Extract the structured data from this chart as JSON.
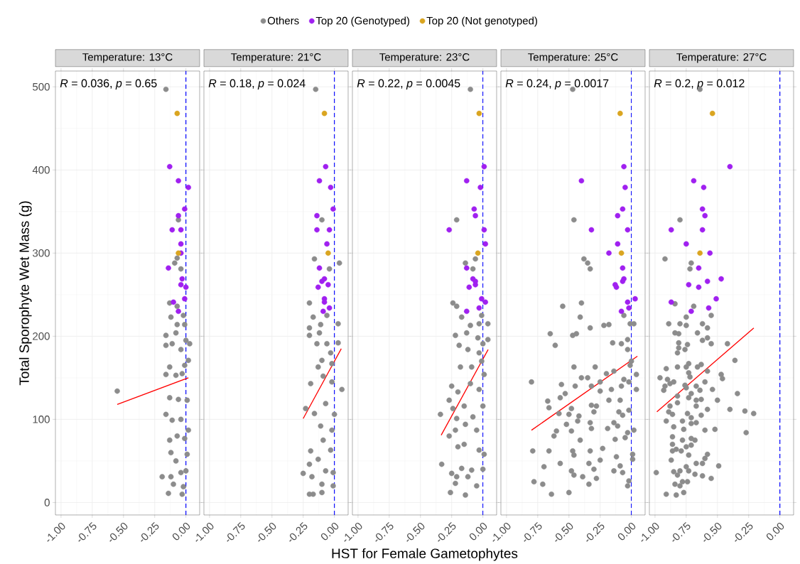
{
  "chart_data": [
    {
      "type": "scatter",
      "title": "Temperature: 13°C",
      "ylabel": "Total Sporophyte Wet Mass (g)",
      "annotations": [
        "*R* = 0.036, *p* = 0.65"
      ],
      "xlim": [
        -1.045,
        0.11
      ],
      "ylim": [
        -15,
        519
      ],
      "xticks": [
        {
          "value": -1,
          "label": "-1.00"
        },
        {
          "value": -0.75,
          "label": "-0.75"
        },
        {
          "value": -0.5,
          "label": "-0.50"
        },
        {
          "value": -0.25,
          "label": "-0.25"
        },
        {
          "value": 0,
          "label": "0.00"
        }
      ],
      "yticks": [
        0,
        100,
        200,
        300,
        400,
        500
      ],
      "grid": true,
      "marker": "circle",
      "legend": "top",
      "ref_lines": [
        {
          "axis": "x",
          "value": 0,
          "color": "#0000ff",
          "line_style": "dashed"
        }
      ],
      "series": [
        {
          "name": "Others",
          "color": "#8c8c8c",
          "x": [
            -0.16,
            -0.55,
            -0.06,
            -0.07,
            -0.09,
            -0.04,
            -0.13,
            -0.07,
            -0.12,
            -0.02,
            -0.07,
            -0.01,
            -0.16,
            -0.08,
            -0.16,
            -0.11,
            -0.04,
            0.03,
            0,
            0.02,
            -0.13,
            -0.01,
            -0.16,
            -0.08,
            -0.03,
            -0.13,
            -0.06,
            0.01,
            -0.16,
            -0.11,
            -0.04,
            0.02,
            -0.13,
            -0.07,
            -0.01,
            -0.12,
            0.01,
            -0.08,
            -0.19,
            -0.12,
            -0.04,
            0,
            -0.1,
            -0.02,
            -0.14,
            -0.03
          ],
          "values": [
            497,
            134,
            340,
            294,
            288,
            281,
            240,
            236,
            223,
            225,
            214,
            214,
            201,
            204,
            189,
            191,
            184,
            191,
            195,
            171,
            163,
            165,
            154,
            153,
            155,
            126,
            124,
            123,
            106,
            99,
            100,
            87,
            75,
            80,
            77,
            60,
            58,
            50,
            31,
            31,
            36,
            38,
            22,
            19,
            11,
            10
          ]
        },
        {
          "name": "Top 20 (Genotyped)",
          "color": "#a020f0",
          "x": [
            -0.13,
            -0.06,
            0.02,
            -0.01,
            -0.06,
            -0.11,
            -0.04,
            -0.04,
            -0.04,
            -0.14,
            -0.03,
            -0.04,
            0,
            -0.01,
            -0.1,
            -0.06
          ],
          "values": [
            404,
            387,
            379,
            353,
            345,
            328,
            328,
            311,
            300,
            282,
            269,
            262,
            259,
            245,
            241,
            230
          ]
        },
        {
          "name": "Top 20 (Not genotyped)",
          "color": "#daa520",
          "x": [
            -0.07,
            -0.06
          ],
          "values": [
            468,
            300
          ]
        },
        {
          "type": "line",
          "marker": "none",
          "color": "#ff0000",
          "x": [
            -0.55,
            0.02
          ],
          "values": [
            118,
            150
          ]
        }
      ]
    },
    {
      "type": "scatter",
      "title": "Temperature: 21°C",
      "annotations": [
        "*R* = 0.18, *p* = 0.024"
      ],
      "xlim": [
        -1.045,
        0.11
      ],
      "ylim": [
        -15,
        519
      ],
      "xticks": [
        {
          "value": -1,
          "label": "-1.00"
        },
        {
          "value": -0.75,
          "label": "-0.75"
        },
        {
          "value": -0.5,
          "label": "-0.50"
        },
        {
          "value": -0.25,
          "label": "-0.25"
        },
        {
          "value": 0,
          "label": "0.00"
        }
      ],
      "yticks": [
        0,
        100,
        200,
        300,
        400,
        500
      ],
      "tick_labels": "x",
      "grid": true,
      "marker": "circle",
      "ref_lines": [
        {
          "axis": "x",
          "value": 0,
          "color": "#0000ff",
          "line_style": "dashed"
        }
      ],
      "series": [
        {
          "color": "#8c8c8c",
          "x": [
            -0.15,
            -0.1,
            -0.16,
            -0.04,
            0.04,
            -0.2,
            -0.17,
            -0.06,
            -0.11,
            0.03,
            -0.2,
            -0.2,
            -0.12,
            -0.14,
            -0.06,
            0.03,
            -0.03,
            -0.1,
            -0.13,
            -0.02,
            -0.19,
            -0.09,
            0.06,
            -0.02,
            -0.23,
            -0.16,
            -0.07,
            0,
            -0.11,
            -0.02,
            -0.19,
            -0.09,
            -0.03,
            -0.2,
            -0.13,
            -0.25,
            -0.18,
            -0.07,
            -0.01,
            -0.1,
            -0.01,
            -0.2,
            -0.17,
            -0.1
          ],
          "values": [
            497,
            340,
            293,
            281,
            288,
            240,
            223,
            225,
            214,
            215,
            210,
            201,
            204,
            191,
            191,
            192,
            180,
            171,
            163,
            167,
            143,
            152,
            136,
            145,
            113,
            107,
            119,
            106,
            92,
            87,
            62,
            75,
            63,
            46,
            52,
            35,
            31,
            38,
            36,
            22,
            20,
            10,
            10,
            12
          ]
        },
        {
          "color": "#a020f0",
          "x": [
            -0.07,
            -0.12,
            -0.03,
            -0.01,
            -0.14,
            -0.14,
            -0.04,
            -0.06,
            -0.12,
            -0.08,
            -0.1,
            -0.05,
            -0.13,
            -0.08,
            -0.08,
            -0.04,
            -0.09
          ],
          "values": [
            404,
            387,
            379,
            353,
            345,
            328,
            328,
            311,
            282,
            269,
            266,
            262,
            259,
            245,
            241,
            234,
            230
          ]
        },
        {
          "color": "#daa520",
          "x": [
            -0.08,
            -0.05
          ],
          "values": [
            468,
            300
          ]
        },
        {
          "type": "line",
          "marker": "none",
          "color": "#ff0000",
          "x": [
            -0.25,
            0.055
          ],
          "values": [
            101,
            185
          ]
        }
      ]
    },
    {
      "type": "scatter",
      "title": "Temperature: 23°C",
      "xlabel": "HST for Female Gametophytes",
      "annotations": [
        "*R* = 0.22, *p* = 0.0045"
      ],
      "xlim": [
        -1.045,
        0.11
      ],
      "ylim": [
        -15,
        519
      ],
      "xticks": [
        {
          "value": -1,
          "label": "-1.00"
        },
        {
          "value": -0.75,
          "label": "-0.75"
        },
        {
          "value": -0.5,
          "label": "-0.50"
        },
        {
          "value": -0.25,
          "label": "-0.25"
        },
        {
          "value": 0,
          "label": "0.00"
        }
      ],
      "yticks": [
        0,
        100,
        200,
        300,
        400,
        500
      ],
      "tick_labels": "x",
      "grid": true,
      "marker": "circle",
      "ref_lines": [
        {
          "axis": "x",
          "value": 0,
          "color": "#0000ff",
          "line_style": "dashed"
        }
      ],
      "series": [
        {
          "color": "#8c8c8c",
          "x": [
            -0.1,
            -0.21,
            -0.06,
            -0.14,
            -0.08,
            -0.24,
            -0.21,
            -0.01,
            -0.17,
            -0.1,
            -0.03,
            0.04,
            -0.22,
            -0.13,
            -0.04,
            -0.19,
            -0.12,
            0,
            0.04,
            -0.03,
            -0.18,
            -0.09,
            -0.01,
            0.01,
            -0.25,
            -0.2,
            -0.1,
            -0.03,
            -0.27,
            -0.24,
            -0.15,
            0,
            -0.34,
            -0.21,
            -0.08,
            -0.27,
            -0.22,
            -0.14,
            -0.05,
            -0.2,
            -0.15,
            -0.03,
            0.01,
            -0.33,
            -0.25,
            -0.17,
            -0.09,
            0,
            -0.21,
            -0.12,
            -0.22,
            -0.05,
            -0.26,
            -0.14
          ],
          "values": [
            497,
            340,
            293,
            288,
            281,
            240,
            236,
            225,
            223,
            213,
            215,
            215,
            201,
            204,
            198,
            189,
            184,
            191,
            196,
            180,
            163,
            163,
            170,
            154,
            140,
            133,
            143,
            136,
            123,
            113,
            116,
            116,
            106,
            101,
            103,
            80,
            87,
            94,
            87,
            67,
            70,
            63,
            58,
            46,
            35,
            41,
            39,
            40,
            31,
            31,
            23,
            20,
            12,
            9
          ]
        },
        {
          "color": "#a020f0",
          "x": [
            0.01,
            -0.13,
            -0.02,
            -0.07,
            -0.06,
            -0.27,
            0.01,
            0.02,
            -0.13,
            -0.08,
            -0.06,
            -0.11,
            -0.06,
            -0.01,
            0.02,
            -0.03,
            -0.13
          ],
          "values": [
            404,
            387,
            379,
            353,
            345,
            328,
            328,
            311,
            282,
            269,
            266,
            259,
            262,
            245,
            241,
            234,
            230
          ]
        },
        {
          "color": "#daa520",
          "x": [
            -0.03,
            -0.04
          ],
          "values": [
            468,
            300
          ]
        },
        {
          "type": "line",
          "marker": "none",
          "color": "#ff0000",
          "x": [
            -0.334,
            0.042
          ],
          "values": [
            81,
            184
          ]
        }
      ]
    },
    {
      "type": "scatter",
      "title": "Temperature: 25°C",
      "annotations": [
        "*R* = 0.24, *p* = 0.0017"
      ],
      "xlim": [
        -1.045,
        0.11
      ],
      "ylim": [
        -15,
        519
      ],
      "xticks": [
        {
          "value": -1,
          "label": "-1.00"
        },
        {
          "value": -0.75,
          "label": "-0.75"
        },
        {
          "value": -0.5,
          "label": "-0.50"
        },
        {
          "value": -0.25,
          "label": "-0.25"
        },
        {
          "value": 0,
          "label": "0.00"
        }
      ],
      "yticks": [
        0,
        100,
        200,
        300,
        400,
        500
      ],
      "tick_labels": "x",
      "grid": true,
      "marker": "circle",
      "ref_lines": [
        {
          "axis": "x",
          "value": 0,
          "color": "#0000ff",
          "line_style": "dashed"
        }
      ],
      "series": [
        {
          "color": "#8c8c8c",
          "x": [
            -0.47,
            -0.46,
            -0.38,
            -0.35,
            -0.33,
            -0.55,
            -0.4,
            -0.41,
            -0.06,
            -0.33,
            -0.22,
            -0.18,
            -0.01,
            0.02,
            -0.65,
            -0.47,
            -0.44,
            -0.61,
            -0.15,
            -0.08,
            -0.03,
            -0.03,
            -0.46,
            -0.29,
            -0.01,
            0,
            -0.8,
            -0.56,
            -0.4,
            -0.35,
            -0.2,
            -0.14,
            -0.45,
            -0.32,
            -0.25,
            -0.06,
            -0.02,
            0.04,
            -0.53,
            -0.25,
            -0.16,
            -0.08,
            0.04,
            -0.67,
            -0.57,
            -0.18,
            -0.09,
            -0.66,
            -0.32,
            -0.28,
            -0.58,
            -0.48,
            -0.3,
            -0.1,
            -0.02,
            -0.5,
            -0.42,
            -0.07,
            -0.43,
            -0.33,
            -0.14,
            -0.11,
            -0.52,
            -0.6,
            -0.48,
            -0.62,
            -0.32,
            -0.19,
            -0.03,
            0.02,
            -0.41,
            -0.13,
            -0.05,
            -0.79,
            -0.66,
            -0.47,
            -0.33,
            -0.23,
            0.01,
            -0.46,
            -0.12,
            -0.25,
            0.01,
            -0.7,
            -0.57,
            -0.34,
            -0.09,
            -0.48,
            -0.46,
            -0.39,
            -0.3,
            -0.28,
            -0.14,
            -0.07,
            -0.78,
            -0.71,
            -0.34,
            -0.02,
            -0.03,
            -0.64,
            -0.5
          ],
          "values": [
            497,
            340,
            293,
            288,
            281,
            236,
            240,
            223,
            225,
            210,
            213,
            214,
            215,
            215,
            203,
            201,
            203,
            189,
            192,
            191,
            196,
            184,
            163,
            163,
            165,
            170,
            145,
            142,
            150,
            150,
            155,
            158,
            140,
            140,
            145,
            148,
            145,
            154,
            131,
            134,
            136,
            140,
            136,
            122,
            126,
            123,
            123,
            114,
            117,
            116,
            107,
            113,
            109,
            109,
            111,
            106,
            104,
            105,
            98,
            96,
            96,
            92,
            94,
            86,
            86,
            80,
            89,
            89,
            84,
            87,
            75,
            76,
            78,
            62,
            62,
            62,
            62,
            65,
            58,
            57,
            55,
            51,
            52,
            43,
            47,
            47,
            44,
            38,
            33,
            31,
            40,
            29,
            38,
            36,
            25,
            22,
            22,
            26,
            20,
            10,
            12
          ]
        },
        {
          "color": "#a020f0",
          "x": [
            -0.06,
            -0.4,
            -0.05,
            -0.07,
            -0.11,
            -0.32,
            -0.03,
            -0.11,
            -0.18,
            -0.07,
            -0.06,
            -0.07,
            -0.13,
            -0.12,
            -0.03,
            0.03,
            -0.02,
            -0.08
          ],
          "values": [
            404,
            387,
            379,
            353,
            345,
            328,
            328,
            311,
            300,
            282,
            269,
            266,
            262,
            259,
            241,
            245,
            234,
            230
          ]
        },
        {
          "color": "#daa520",
          "x": [
            -0.09,
            -0.08
          ],
          "values": [
            468,
            300
          ]
        },
        {
          "type": "line",
          "marker": "none",
          "color": "#ff0000",
          "x": [
            -0.8,
            0.048
          ],
          "values": [
            87,
            176
          ]
        }
      ]
    },
    {
      "type": "scatter",
      "title": "Temperature: 27°C",
      "annotations": [
        "*R* = 0.2, *p* = 0.012"
      ],
      "xlim": [
        -1.045,
        0.11
      ],
      "ylim": [
        -15,
        519
      ],
      "xticks": [
        {
          "value": -1,
          "label": "-1.00"
        },
        {
          "value": -0.75,
          "label": "-0.75"
        },
        {
          "value": -0.5,
          "label": "-0.50"
        },
        {
          "value": -0.25,
          "label": "-0.25"
        },
        {
          "value": 0,
          "label": "0.00"
        }
      ],
      "yticks": [
        0,
        100,
        200,
        300,
        400,
        500
      ],
      "tick_labels": "x",
      "grid": true,
      "marker": "circle",
      "ref_lines": [
        {
          "axis": "x",
          "value": 0,
          "color": "#0000ff",
          "line_style": "dashed"
        }
      ],
      "series": [
        {
          "color": "#8c8c8c",
          "x": [
            -0.64,
            -0.8,
            -0.92,
            -0.71,
            -0.72,
            -0.84,
            -0.69,
            -0.55,
            -0.75,
            -0.89,
            -0.8,
            -0.75,
            -0.62,
            -0.58,
            -0.84,
            -0.81,
            -0.66,
            -0.62,
            -0.58,
            -0.55,
            -0.42,
            -0.81,
            -0.74,
            -0.81,
            -0.76,
            -0.82,
            -0.36,
            -0.73,
            -0.82,
            -0.75,
            -0.66,
            -0.63,
            -0.91,
            -0.58,
            -0.73,
            -0.96,
            -0.9,
            -0.85,
            -0.72,
            -0.47,
            -0.46,
            -0.6,
            -0.92,
            -0.88,
            -0.76,
            -0.67,
            -0.93,
            -0.75,
            -0.64,
            -0.54,
            -0.34,
            -0.82,
            -0.71,
            -0.73,
            -0.63,
            -0.5,
            -0.82,
            -0.67,
            -0.88,
            -0.67,
            -0.89,
            -0.86,
            -0.58,
            -0.4,
            -0.28,
            -0.21,
            -0.74,
            -0.63,
            -0.71,
            -0.91,
            -0.78,
            -0.71,
            -0.67,
            -0.85,
            -0.77,
            -0.6,
            -0.52,
            -0.27,
            -0.86,
            -0.71,
            -0.68,
            -0.78,
            -0.86,
            -0.71,
            -0.75,
            -0.83,
            -0.86,
            -0.79,
            -0.58,
            -0.73,
            -0.6,
            -0.87,
            -0.62,
            -0.67,
            -0.49,
            -0.75,
            -0.99,
            -0.85,
            -0.8,
            -0.73,
            -0.82,
            -0.68,
            -0.62,
            -0.55,
            -0.84,
            -0.8,
            -0.78,
            -0.74,
            -0.91,
            -0.83,
            -0.77
          ],
          "values": [
            497,
            340,
            293,
            288,
            281,
            239,
            236,
            225,
            223,
            215,
            215,
            213,
            215,
            210,
            204,
            203,
            204,
            195,
            198,
            191,
            191,
            192,
            190,
            186,
            184,
            180,
            171,
            167,
            163,
            163,
            163,
            166,
            161,
            158,
            156,
            150,
            148,
            145,
            151,
            154,
            149,
            145,
            140,
            143,
            141,
            140,
            135,
            138,
            135,
            136,
            131,
            128,
            131,
            126,
            124,
            123,
            120,
            123,
            116,
            116,
            109,
            106,
            112,
            112,
            110,
            107,
            107,
            105,
            102,
            98,
            98,
            95,
            96,
            91,
            88,
            87,
            88,
            84,
            79,
            77,
            75,
            75,
            70,
            69,
            67,
            64,
            62,
            62,
            58,
            57,
            53,
            51,
            47,
            47,
            44,
            43,
            36,
            37,
            38,
            38,
            33,
            34,
            32,
            29,
            22,
            20,
            25,
            25,
            10,
            9,
            12
          ]
        },
        {
          "color": "#a020f0",
          "x": [
            -0.4,
            -0.69,
            -0.61,
            -0.62,
            -0.6,
            -0.87,
            -0.62,
            -0.75,
            -0.56,
            -0.65,
            -0.47,
            -0.58,
            -0.73,
            -0.65,
            -0.51,
            -0.87,
            -0.57,
            -0.71
          ],
          "values": [
            404,
            387,
            379,
            353,
            345,
            328,
            328,
            311,
            300,
            282,
            269,
            266,
            262,
            259,
            245,
            241,
            234,
            230
          ]
        },
        {
          "color": "#daa520",
          "x": [
            -0.54,
            -0.64
          ],
          "values": [
            468,
            300
          ]
        },
        {
          "type": "line",
          "marker": "none",
          "color": "#ff0000",
          "x": [
            -0.985,
            -0.209
          ],
          "values": [
            109,
            210
          ]
        }
      ]
    }
  ]
}
